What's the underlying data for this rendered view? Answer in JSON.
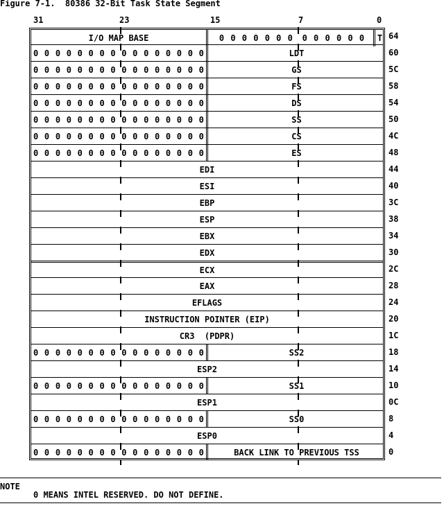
{
  "title": "Figure 7-1.  80386 32-Bit Task State Segment",
  "bit_labels": [
    "31",
    "23",
    "15",
    "7",
    "0"
  ],
  "top_row": {
    "offset": "64",
    "left": "I/O MAP BASE",
    "zeros_a": "0 0 0 0 0 0 0",
    "zeros_b": "0 0 0 0 0 0",
    "t": "T"
  },
  "rows": [
    {
      "offset": "60",
      "split": true,
      "label": "LDT"
    },
    {
      "offset": "5C",
      "split": true,
      "label": "GS"
    },
    {
      "offset": "58",
      "split": true,
      "label": "FS"
    },
    {
      "offset": "54",
      "split": true,
      "label": "DS"
    },
    {
      "offset": "50",
      "split": true,
      "label": "SS"
    },
    {
      "offset": "4C",
      "split": true,
      "label": "CS"
    },
    {
      "offset": "48",
      "split": true,
      "label": "ES"
    },
    {
      "offset": "44",
      "split": false,
      "label": "EDI"
    },
    {
      "offset": "40",
      "split": false,
      "label": "ESI"
    },
    {
      "offset": "3C",
      "split": false,
      "label": "EBP"
    },
    {
      "offset": "38",
      "split": false,
      "label": "ESP"
    },
    {
      "offset": "34",
      "split": false,
      "label": "EBX"
    },
    {
      "offset": "30",
      "split": false,
      "label": "EDX"
    },
    {
      "offset": "2C",
      "split": false,
      "label": "ECX"
    },
    {
      "offset": "28",
      "split": false,
      "label": "EAX"
    },
    {
      "offset": "24",
      "split": false,
      "label": "EFLAGS"
    },
    {
      "offset": "20",
      "split": false,
      "label": "INSTRUCTION POINTER (EIP)"
    },
    {
      "offset": "1C",
      "split": false,
      "label": "CR3  (PDPR)"
    },
    {
      "offset": "18",
      "split": true,
      "label": "SS2"
    },
    {
      "offset": "14",
      "split": false,
      "label": "ESP2"
    },
    {
      "offset": "10",
      "split": true,
      "label": "SS1"
    },
    {
      "offset": "0C",
      "split": false,
      "label": "ESP1"
    },
    {
      "offset": "8",
      "split": true,
      "label": "SS0"
    },
    {
      "offset": "4",
      "split": false,
      "label": "ESP0"
    },
    {
      "offset": "0",
      "split": true,
      "label": "BACK LINK TO PREVIOUS TSS"
    }
  ],
  "reserved_digit": "0",
  "note": {
    "heading": "NOTE",
    "text": "0 MEANS INTEL RESERVED. DO NOT DEFINE."
  }
}
